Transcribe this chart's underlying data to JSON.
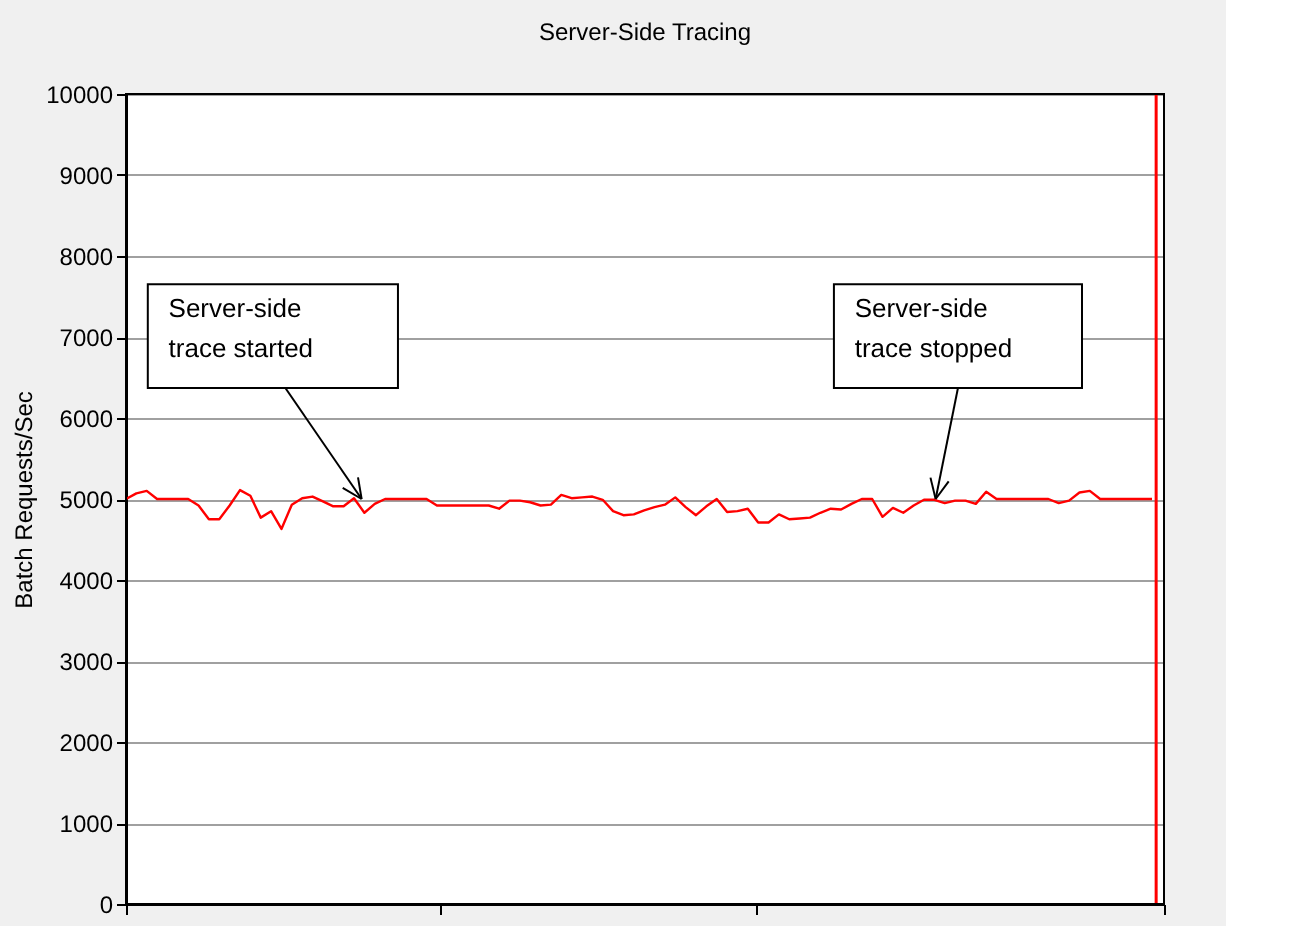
{
  "chart_data": {
    "type": "line",
    "title": "Server-Side Tracing",
    "ylabel": "Batch Requests/Sec",
    "categories": [
      null,
      null,
      null,
      null,
      null,
      null,
      null,
      null,
      null,
      null,
      null,
      null,
      null,
      null,
      null,
      null,
      null,
      null,
      null,
      null,
      null,
      null,
      null,
      null,
      null,
      null,
      null,
      null,
      null,
      null,
      null,
      null,
      null,
      null,
      null,
      null,
      null,
      null,
      null,
      null,
      null,
      null,
      null,
      null,
      null,
      null,
      null,
      null,
      null,
      null,
      null,
      null,
      null,
      null,
      null,
      null,
      null,
      null,
      null,
      null,
      null,
      null,
      null,
      null,
      null,
      null,
      null,
      null,
      null,
      null,
      null,
      null,
      null,
      null,
      null,
      null,
      null,
      null,
      null,
      null,
      null,
      null,
      null,
      null,
      null,
      null,
      null,
      null,
      null,
      null,
      null,
      null,
      null,
      null,
      null,
      null,
      null,
      null,
      null,
      null
    ],
    "series": [
      {
        "color": "#ff0000",
        "values": [
          5000,
          5070,
          5100,
          5000,
          5000,
          5000,
          5000,
          4920,
          4750,
          4750,
          4920,
          5110,
          5040,
          4770,
          4850,
          4630,
          4930,
          5010,
          5030,
          4970,
          4910,
          4910,
          5010,
          4830,
          4940,
          5000,
          5000,
          5000,
          5000,
          5000,
          4920,
          4920,
          4920,
          4920,
          4920,
          4920,
          4880,
          4980,
          4980,
          4960,
          4920,
          4930,
          5050,
          5010,
          5020,
          5030,
          4990,
          4850,
          4800,
          4810,
          4860,
          4900,
          4930,
          5020,
          4900,
          4800,
          4910,
          5000,
          4840,
          4850,
          4880,
          4710,
          4710,
          4810,
          4750,
          4760,
          4770,
          4830,
          4880,
          4870,
          4940,
          5000,
          5000,
          4780,
          4890,
          4830,
          4920,
          4990,
          4990,
          4950,
          4980,
          4980,
          4940,
          5090,
          5000,
          5000,
          5000,
          5000,
          5000,
          5000,
          4950,
          4980,
          5080,
          5100,
          5000,
          5000,
          5000,
          5000,
          5000,
          5000
        ]
      }
    ],
    "ylim": [
      0,
      10000
    ],
    "yticks": [
      0,
      1000,
      2000,
      3000,
      4000,
      5000,
      6000,
      7000,
      8000,
      9000,
      10000
    ],
    "grid": "y",
    "tick_labels": "y",
    "line_style": "solid",
    "ref_lines": [
      {
        "axis": "x",
        "color": "#ff0000"
      }
    ],
    "annotations": [
      "Server-side\ntrace started",
      "Server-side\ntrace stopped"
    ]
  }
}
